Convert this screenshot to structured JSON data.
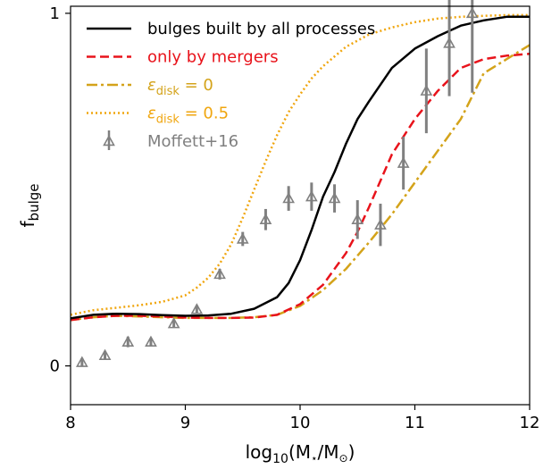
{
  "chart_data": {
    "type": "line",
    "xlabel_parts": {
      "main": "log",
      "sub10": "10",
      "paren_open": "(M",
      "star": "⋆",
      "slash": "/M",
      "sun": "⊙",
      "paren_close": ")"
    },
    "ylabel_parts": {
      "main": "f",
      "sub": "bulge"
    },
    "xlim": [
      8,
      12
    ],
    "ylim": [
      -0.11,
      1.02
    ],
    "x_ticks": [
      8,
      9,
      10,
      11,
      12
    ],
    "x_tick_labels": [
      "8",
      "9",
      "10",
      "11",
      "12"
    ],
    "y_ticks": [
      0,
      1
    ],
    "y_tick_labels": [
      "0",
      "1"
    ],
    "grid": false,
    "legend_position": "top-left",
    "colors": {
      "all": "#000000",
      "mergers": "#e8131b",
      "eps0": "#d4a31a",
      "eps05": "#f0a60f",
      "obs": "#808080"
    },
    "series": [
      {
        "name": "bulges built by all processes",
        "key": "all",
        "style": "solid",
        "x": [
          8.0,
          8.2,
          8.4,
          8.6,
          8.8,
          9.0,
          9.2,
          9.4,
          9.6,
          9.8,
          9.9,
          10.0,
          10.1,
          10.2,
          10.3,
          10.4,
          10.5,
          10.6,
          10.8,
          11.0,
          11.2,
          11.4,
          11.6,
          11.8,
          12.0
        ],
        "y": [
          0.135,
          0.145,
          0.148,
          0.147,
          0.144,
          0.142,
          0.143,
          0.148,
          0.162,
          0.195,
          0.235,
          0.3,
          0.385,
          0.48,
          0.55,
          0.63,
          0.7,
          0.75,
          0.845,
          0.9,
          0.935,
          0.965,
          0.98,
          0.99,
          0.99
        ]
      },
      {
        "name": "only by mergers",
        "key": "mergers",
        "style": "dashed",
        "x": [
          8.0,
          8.2,
          8.4,
          8.6,
          8.8,
          9.0,
          9.2,
          9.4,
          9.6,
          9.8,
          10.0,
          10.2,
          10.4,
          10.5,
          10.6,
          10.8,
          11.0,
          11.2,
          11.4,
          11.6,
          11.8,
          12.0
        ],
        "y": [
          0.13,
          0.138,
          0.142,
          0.142,
          0.14,
          0.137,
          0.136,
          0.136,
          0.137,
          0.145,
          0.175,
          0.23,
          0.32,
          0.38,
          0.45,
          0.6,
          0.7,
          0.78,
          0.845,
          0.87,
          0.88,
          0.885
        ]
      },
      {
        "name": "ε_disk = 0",
        "key": "eps0",
        "style": "dashdot",
        "x": [
          8.0,
          8.2,
          8.4,
          8.6,
          8.8,
          9.0,
          9.2,
          9.4,
          9.6,
          9.8,
          10.0,
          10.2,
          10.4,
          10.6,
          10.8,
          11.0,
          11.2,
          11.4,
          11.6,
          11.8,
          12.0
        ],
        "y": [
          0.13,
          0.138,
          0.142,
          0.14,
          0.138,
          0.136,
          0.136,
          0.136,
          0.138,
          0.145,
          0.17,
          0.215,
          0.275,
          0.35,
          0.43,
          0.52,
          0.61,
          0.7,
          0.83,
          0.87,
          0.91
        ]
      },
      {
        "name": "ε_disk = 0.5",
        "key": "eps05",
        "style": "dotted",
        "x": [
          8.0,
          8.2,
          8.4,
          8.6,
          8.8,
          9.0,
          9.1,
          9.2,
          9.3,
          9.4,
          9.5,
          9.6,
          9.7,
          9.8,
          9.9,
          10.0,
          10.1,
          10.2,
          10.4,
          10.6,
          10.8,
          11.0,
          11.2,
          11.4,
          11.6,
          11.8,
          12.0
        ],
        "y": [
          0.145,
          0.158,
          0.165,
          0.172,
          0.182,
          0.2,
          0.222,
          0.25,
          0.29,
          0.345,
          0.42,
          0.5,
          0.58,
          0.655,
          0.72,
          0.77,
          0.815,
          0.85,
          0.905,
          0.94,
          0.96,
          0.975,
          0.985,
          0.99,
          0.993,
          0.995,
          0.995
        ]
      }
    ],
    "observations": {
      "name": "Moffett+16",
      "key": "obs",
      "points": [
        {
          "x": 8.1,
          "y": 0.01,
          "err": 0.012
        },
        {
          "x": 8.3,
          "y": 0.03,
          "err": 0.012
        },
        {
          "x": 8.5,
          "y": 0.068,
          "err": 0.015
        },
        {
          "x": 8.7,
          "y": 0.068,
          "err": 0.012
        },
        {
          "x": 8.9,
          "y": 0.12,
          "err": 0.012
        },
        {
          "x": 9.1,
          "y": 0.16,
          "err": 0.012
        },
        {
          "x": 9.3,
          "y": 0.26,
          "err": 0.015
        },
        {
          "x": 9.5,
          "y": 0.36,
          "err": 0.02
        },
        {
          "x": 9.7,
          "y": 0.415,
          "err": 0.03
        },
        {
          "x": 9.9,
          "y": 0.475,
          "err": 0.035
        },
        {
          "x": 10.1,
          "y": 0.48,
          "err": 0.04
        },
        {
          "x": 10.3,
          "y": 0.475,
          "err": 0.04
        },
        {
          "x": 10.5,
          "y": 0.415,
          "err": 0.055
        },
        {
          "x": 10.7,
          "y": 0.4,
          "err": 0.06
        },
        {
          "x": 10.9,
          "y": 0.575,
          "err": 0.075
        },
        {
          "x": 11.1,
          "y": 0.78,
          "err": 0.12
        },
        {
          "x": 11.3,
          "y": 0.915,
          "err": 0.15
        },
        {
          "x": 11.5,
          "y": 1.0,
          "err": 0.225
        }
      ]
    },
    "legend": [
      {
        "key": "all",
        "label": "bulges built by all processes"
      },
      {
        "key": "mergers",
        "label": "only by mergers"
      },
      {
        "key": "eps0",
        "label_parts": {
          "sym": "ε",
          "sub": "disk",
          "rest": " = 0"
        }
      },
      {
        "key": "eps05",
        "label_parts": {
          "sym": "ε",
          "sub": "disk",
          "rest": " = 0.5"
        }
      },
      {
        "key": "obs",
        "label": "Moffett+16"
      }
    ]
  }
}
